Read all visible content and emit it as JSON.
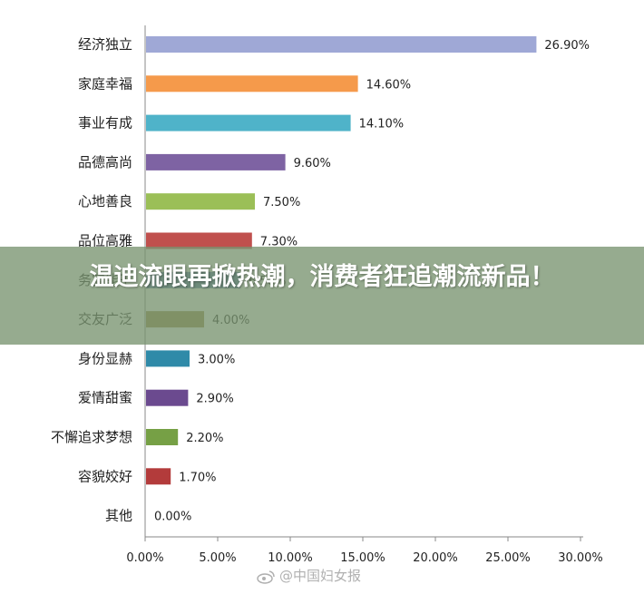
{
  "chart_data": {
    "type": "bar",
    "orientation": "horizontal",
    "categories": [
      "经济独立",
      "家庭幸福",
      "事业有成",
      "品德高尚",
      "心地善良",
      "品位高雅",
      "务实能干",
      "交友广泛",
      "身份显赫",
      "爱情甜蜜",
      "不懈追求梦想",
      "容貌姣好",
      "其他"
    ],
    "values": [
      26.9,
      14.6,
      14.1,
      9.6,
      7.5,
      7.3,
      6.5,
      4.0,
      3.0,
      2.9,
      2.2,
      1.7,
      0.0
    ],
    "value_labels": [
      "26.90%",
      "14.60%",
      "14.10%",
      "9.60%",
      "7.50%",
      "7.30%",
      "6.50%",
      "4.00%",
      "3.00%",
      "2.90%",
      "2.20%",
      "1.70%",
      "0.00%"
    ],
    "colors": [
      "#9fa8d6",
      "#f59a4b",
      "#4fb3c9",
      "#7e63a3",
      "#9bbf57",
      "#c0504d",
      "#4a6fa5",
      "#9b8a45",
      "#2f8aa8",
      "#6b4a8f",
      "#76a045",
      "#b33b3b",
      "#999999"
    ],
    "xlim": [
      0,
      30
    ],
    "xticks": [
      "0.00%",
      "5.00%",
      "10.00%",
      "15.00%",
      "20.00%",
      "25.00%",
      "30.00%"
    ],
    "grid": false
  },
  "banner": {
    "text": "温迪流眼再掀热潮，消费者狂追潮流新品！"
  },
  "watermark": {
    "text": "@中国妇女报",
    "icon": "weibo-icon"
  }
}
